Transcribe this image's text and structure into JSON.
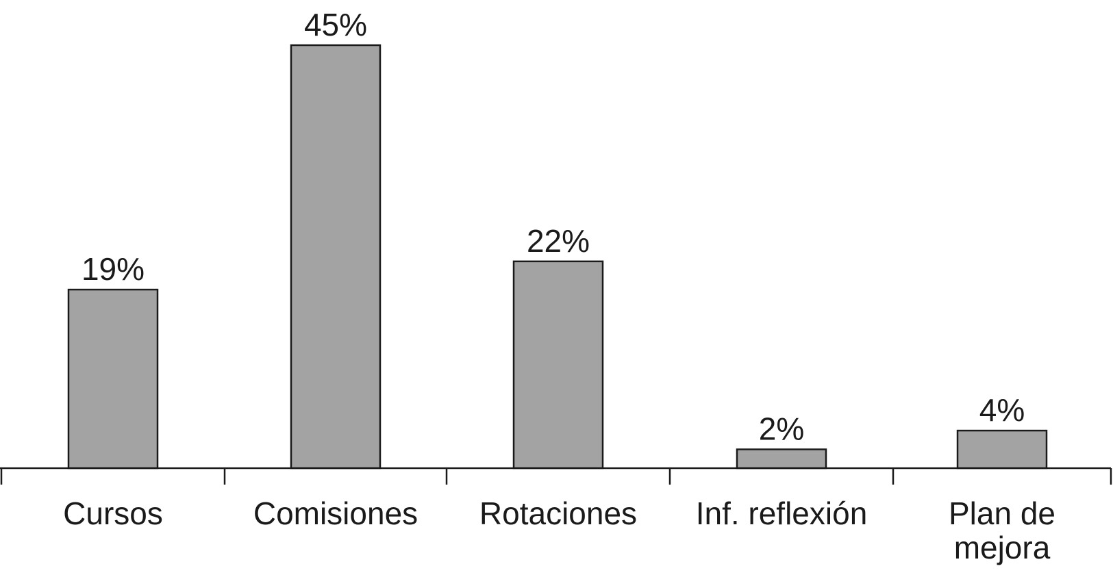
{
  "chart_data": {
    "type": "bar",
    "categories": [
      "Cursos",
      "Comisiones",
      "Rotaciones",
      "Inf. reflexión",
      "Plan de mejora"
    ],
    "category_lines": [
      [
        "Cursos"
      ],
      [
        "Comisiones"
      ],
      [
        "Rotaciones"
      ],
      [
        "Inf. reflexión"
      ],
      [
        "Plan de",
        "mejora"
      ]
    ],
    "values": [
      19,
      45,
      22,
      2,
      4
    ],
    "value_labels": [
      "19%",
      "45%",
      "22%",
      "2%",
      "4%"
    ],
    "ylim": [
      0,
      45
    ],
    "grid": false,
    "legend": "none",
    "colors": {
      "bar_fill": "#a3a3a3",
      "bar_stroke": "#1a1a1a",
      "axis": "#1a1a1a"
    }
  }
}
